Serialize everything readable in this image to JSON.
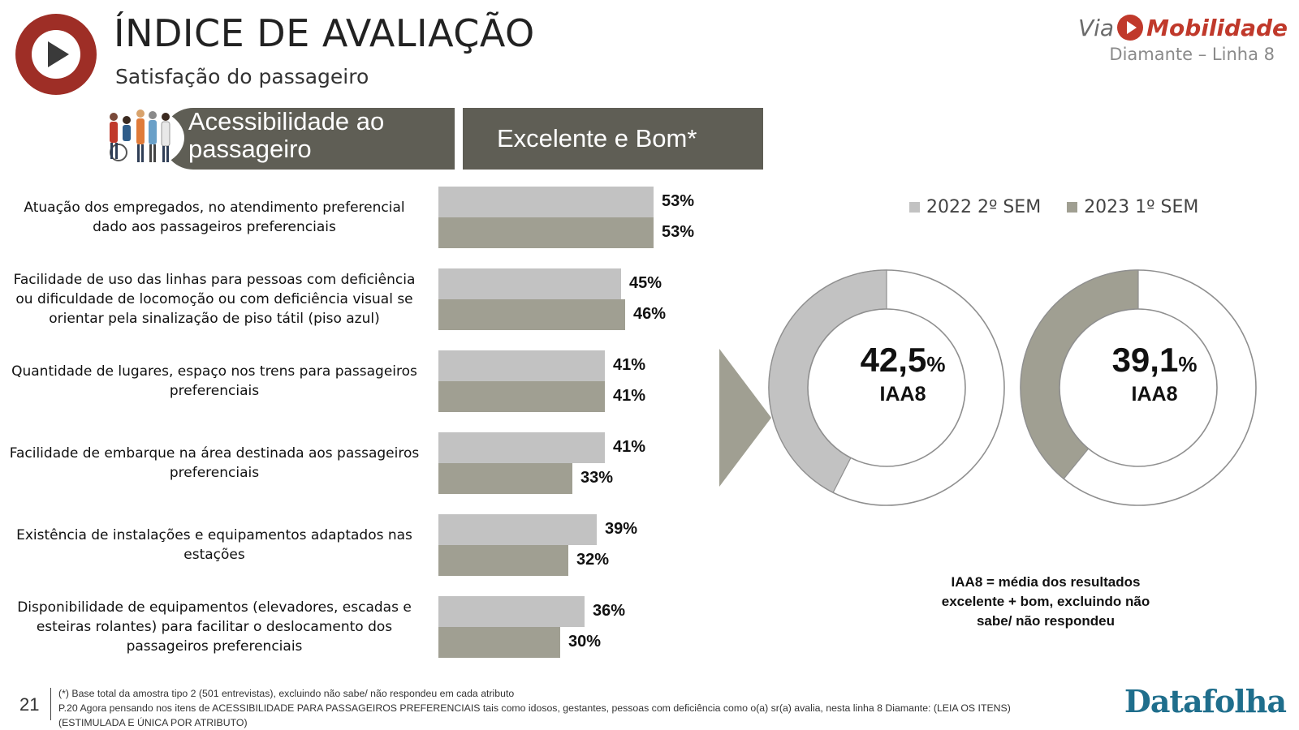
{
  "header": {
    "title": "ÍNDICE DE AVALIAÇÃO",
    "subtitle": "Satisfação do passageiro",
    "brand_via": "Via",
    "brand_mobilidade": "Mobilidade",
    "line_name": "Diamante – Linha 8"
  },
  "section": {
    "title": "Acessibilidade ao passageiro",
    "metric": "Excelente e Bom*"
  },
  "colors": {
    "series_2022": "#c2c2c2",
    "series_2023": "#a09f92",
    "header_bar": "#5f5e55",
    "logo_red": "#9e2e26",
    "datafolha_blue": "#1f6e8c"
  },
  "chart_data": [
    {
      "type": "bar",
      "orientation": "horizontal",
      "categories": [
        "Atuação dos empregados, no atendimento preferencial dado aos passageiros preferenciais",
        "Facilidade de uso das linhas para pessoas com deficiência ou dificuldade de locomoção ou com deficiência visual se orientar pela sinalização de piso tátil (piso azul)",
        "Quantidade de lugares, espaço nos trens para passageiros preferenciais",
        "Facilidade de embarque na área destinada aos passageiros preferenciais",
        "Existência de instalações e equipamentos adaptados nas estações",
        "Disponibilidade de equipamentos (elevadores, escadas e esteiras rolantes) para facilitar o deslocamento dos passageiros preferenciais"
      ],
      "series": [
        {
          "name": "2022 2º SEM",
          "values": [
            53,
            45,
            41,
            41,
            39,
            36
          ],
          "labels": [
            "53%",
            "45%",
            "41%",
            "41%",
            "39%",
            "36%"
          ]
        },
        {
          "name": "2023 1º SEM",
          "values": [
            53,
            46,
            41,
            33,
            32,
            30
          ],
          "labels": [
            "53%",
            "46%",
            "41%",
            "33%",
            "32%",
            "30%"
          ]
        }
      ],
      "legend_position": "right"
    },
    {
      "type": "pie",
      "variant": "donut",
      "series": [
        {
          "name": "2022 2º SEM",
          "value": 42.5,
          "center_value": "42,5",
          "center_unit": "%",
          "center_label": "IAA8"
        },
        {
          "name": "2023 1º SEM",
          "value": 39.1,
          "center_value": "39,1",
          "center_unit": "%",
          "center_label": "IAA8"
        }
      ]
    }
  ],
  "iaa_note": "IAA8 = média dos resultados excelente + bom, excluindo não sabe/ não respondeu",
  "footer": {
    "page_number": "21",
    "note_lines": [
      "(*) Base total da amostra tipo 2 (501 entrevistas), excluindo não sabe/ não respondeu em cada atributo",
      "P.20 Agora pensando nos itens de ACESSIBILIDADE PARA PASSAGEIROS PREFERENCIAIS tais como idosos, gestantes, pessoas com deficiência como o(a) sr(a) avalia, nesta linha 8 Diamante: (LEIA OS ITENS)",
      "(ESTIMULADA E ÚNICA POR ATRIBUTO)"
    ],
    "source": "Datafolha"
  }
}
